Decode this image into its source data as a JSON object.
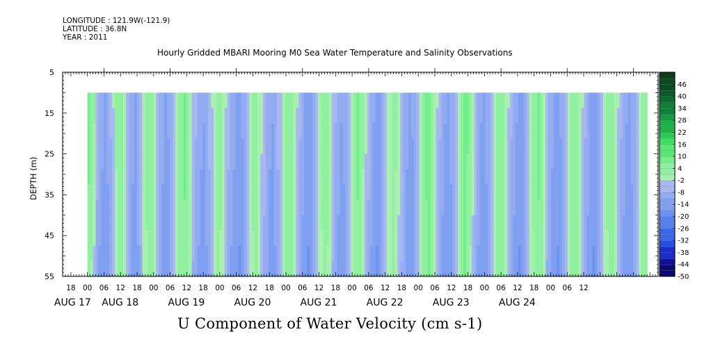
{
  "header": {
    "longitude": "LONGITUDE : 121.9W(-121.9)",
    "latitude": "LATITUDE : 36.8N",
    "year": "YEAR : 2011"
  },
  "chart_data": {
    "type": "heatmap",
    "title": "Hourly Gridded MBARI Mooring M0 Sea Water Temperature and Salinity Observations",
    "xlabel": "U Component of Water Velocity (cm s-1)",
    "ylabel": "DEPTH (m)",
    "x_range_hours": [
      -9,
      207
    ],
    "x_start_label": "AUG 17 18:00",
    "data_start_hour": 0,
    "data_end_hour": 203,
    "ylim": [
      5,
      55
    ],
    "y_inverted": true,
    "data_depth_range": [
      10,
      55
    ],
    "y_ticks": [
      "5",
      "15",
      "25",
      "35",
      "45",
      "55"
    ],
    "x_hour_ticks": [
      "18",
      "00",
      "06",
      "12",
      "18",
      "00",
      "06",
      "12",
      "18",
      "00",
      "06",
      "12",
      "18",
      "00",
      "06",
      "12",
      "18",
      "00",
      "06",
      "12",
      "18",
      "00",
      "06",
      "12",
      "18",
      "00",
      "06",
      "12",
      "18",
      "00",
      "06",
      "12"
    ],
    "x_day_labels": [
      "AUG 17",
      "AUG 18",
      "AUG 19",
      "AUG 20",
      "AUG 21",
      "AUG 22",
      "AUG 23",
      "AUG 24"
    ],
    "colorbar": {
      "labels": [
        "46",
        "40",
        "34",
        "28",
        "22",
        "16",
        "10",
        "4",
        "-2",
        "-8",
        "-14",
        "-20",
        "-26",
        "-32",
        "-38",
        "-44",
        "-50"
      ],
      "min": -50,
      "max": 52,
      "step": 3
    },
    "column_values_surface": [
      8,
      6,
      3,
      -5,
      -8,
      -10,
      -12,
      -10,
      -6,
      -2,
      3,
      5,
      4,
      0,
      -4,
      -8,
      -10,
      -12,
      -9,
      -5,
      -1,
      3,
      6,
      5,
      2,
      -3,
      -7,
      -10,
      -12,
      -11,
      -8,
      -4,
      0,
      4,
      6,
      7,
      5,
      1,
      -3,
      -6,
      -8,
      -10,
      -11,
      -9,
      -6,
      -2,
      2,
      4,
      3,
      1,
      -2,
      -5,
      -8,
      -10,
      -12,
      -13,
      -11,
      -8,
      -4,
      0,
      3,
      4,
      2,
      -1,
      -4,
      -7,
      -10,
      -11,
      -9,
      -6,
      -3,
      1,
      4,
      6,
      5,
      2,
      -2,
      -6,
      -9,
      -12,
      -13,
      -12,
      -9,
      -5,
      -1,
      3,
      5,
      4,
      1,
      -3,
      -6,
      -9,
      -11,
      -10,
      -7,
      -3,
      1,
      5,
      7,
      6,
      3,
      -1,
      -5,
      -8,
      -11,
      -13,
      -12,
      -9,
      -5,
      -1,
      2,
      4,
      3,
      0,
      -3,
      -7,
      -10,
      -12,
      -11,
      -8,
      -4,
      0,
      4,
      7,
      8,
      6,
      2,
      -2,
      -6,
      -9,
      -11,
      -12,
      -10,
      -7,
      -3,
      1,
      5,
      8,
      7,
      4,
      0,
      -4,
      -8,
      -11,
      -12,
      -10,
      -7,
      -3,
      1,
      4,
      6,
      5,
      2,
      -2,
      -6,
      -9,
      -11,
      -13,
      -12,
      -9,
      -5,
      -1,
      3,
      6,
      7,
      5,
      1,
      -3,
      -7,
      -10,
      -12,
      -13,
      -11,
      -8,
      -4,
      0,
      4,
      6,
      5,
      2,
      -2,
      -6,
      -9,
      -12,
      -13,
      -12,
      -9,
      -5,
      -1,
      3,
      6,
      5,
      2,
      -2,
      -6,
      -9,
      -11,
      -12,
      -10,
      -7,
      -3,
      1,
      4,
      5
    ],
    "column_values_bottom": [
      5,
      2,
      -3,
      -8,
      -12,
      -14,
      -15,
      -13,
      -9,
      -4,
      1,
      4,
      3,
      -1,
      -6,
      -10,
      -13,
      -15,
      -12,
      -7,
      -2,
      2,
      5,
      4,
      0,
      -5,
      -10,
      -13,
      -15,
      -14,
      -11,
      -6,
      -1,
      3,
      5,
      6,
      3,
      -2,
      -7,
      -10,
      -12,
      -14,
      -15,
      -12,
      -8,
      -3,
      1,
      3,
      2,
      -1,
      -5,
      -9,
      -12,
      -14,
      -16,
      -17,
      -14,
      -10,
      -5,
      -1,
      2,
      3,
      0,
      -4,
      -8,
      -11,
      -14,
      -15,
      -12,
      -8,
      -4,
      0,
      3,
      5,
      3,
      -1,
      -6,
      -10,
      -13,
      -16,
      -17,
      -15,
      -11,
      -6,
      -2,
      2,
      4,
      2,
      -2,
      -7,
      -11,
      -13,
      -15,
      -13,
      -9,
      -4,
      0,
      4,
      6,
      4,
      1,
      -4,
      -8,
      -12,
      -15,
      -17,
      -15,
      -11,
      -6,
      -2,
      1,
      3,
      1,
      -3,
      -7,
      -11,
      -14,
      -16,
      -14,
      -10,
      -5,
      -1,
      3,
      6,
      7,
      4,
      0,
      -5,
      -9,
      -13,
      -15,
      -16,
      -13,
      -9,
      -4,
      0,
      4,
      7,
      5,
      2,
      -3,
      -8,
      -12,
      -15,
      -16,
      -13,
      -9,
      -4,
      0,
      3,
      5,
      3,
      -1,
      -6,
      -10,
      -13,
      -15,
      -17,
      -15,
      -11,
      -6,
      -2,
      2,
      5,
      6,
      3,
      -2,
      -7,
      -11,
      -14,
      -16,
      -17,
      -14,
      -10,
      -5,
      -1,
      3,
      5,
      3,
      0,
      -5,
      -9,
      -13,
      -16,
      -17,
      -15,
      -11,
      -6,
      -2,
      2,
      5,
      3,
      0,
      -5,
      -9,
      -13,
      -15,
      -16,
      -13,
      -9,
      -4,
      0,
      3,
      4
    ]
  },
  "colors": {
    "negative_scale": [
      "#0a0a6e",
      "#1010a0",
      "#1a2dc8",
      "#2a4ee0",
      "#3e66ea",
      "#5580ee",
      "#6a92f0",
      "#7f9ff0",
      "#93acf1",
      "#a7b7f2"
    ],
    "positive_scale": [
      "#a9f0b0",
      "#8ff0a0",
      "#72ee8a",
      "#55e875",
      "#3cdd62",
      "#2bc955",
      "#1fb24b",
      "#169a41",
      "#0f8038",
      "#0a6a30",
      "#0b5a2a",
      "#0c4a24",
      "#0d3d1e"
    ]
  }
}
